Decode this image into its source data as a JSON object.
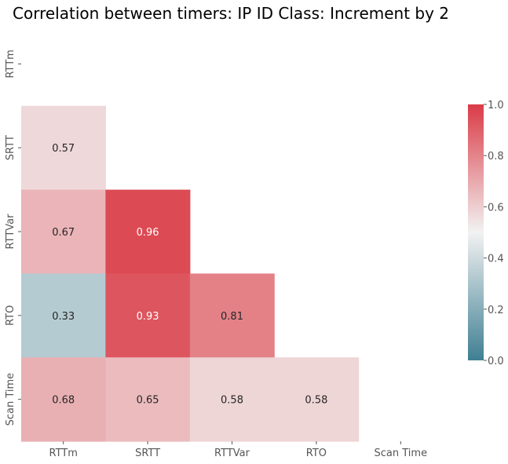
{
  "chart_data": {
    "type": "heatmap",
    "title": "Correlation between timers: IP ID Class: Increment by 2",
    "xlabel": "",
    "ylabel": "",
    "x_categories": [
      "RTTm",
      "SRTT",
      "RTTVar",
      "RTO",
      "Scan Time"
    ],
    "y_categories": [
      "RTTm",
      "SRTT",
      "RTTVar",
      "RTO",
      "Scan Time"
    ],
    "mask": "upper-triangle-including-diagonal",
    "matrix": [
      [
        null,
        null,
        null,
        null,
        null
      ],
      [
        0.57,
        null,
        null,
        null,
        null
      ],
      [
        0.67,
        0.96,
        null,
        null,
        null
      ],
      [
        0.33,
        0.93,
        0.81,
        null,
        null
      ],
      [
        0.68,
        0.65,
        0.58,
        0.58,
        null
      ]
    ],
    "value_labels": [
      [
        "",
        "",
        "",
        "",
        ""
      ],
      [
        "0.57",
        "",
        "",
        "",
        ""
      ],
      [
        "0.67",
        "0.96",
        "",
        "",
        ""
      ],
      [
        "0.33",
        "0.93",
        "0.81",
        "",
        ""
      ],
      [
        "0.68",
        "0.65",
        "0.58",
        "0.58",
        ""
      ]
    ],
    "colorbar": {
      "vmin": 0.0,
      "vmax": 1.0,
      "ticks": [
        "0.0",
        "0.2",
        "0.4",
        "0.6",
        "0.8",
        "1.0"
      ],
      "colormap": "diverging blue-white-red",
      "color_low": "#3f7f93",
      "color_mid": "#f2f2f2",
      "color_high": "#da3b46"
    },
    "grid": false
  }
}
